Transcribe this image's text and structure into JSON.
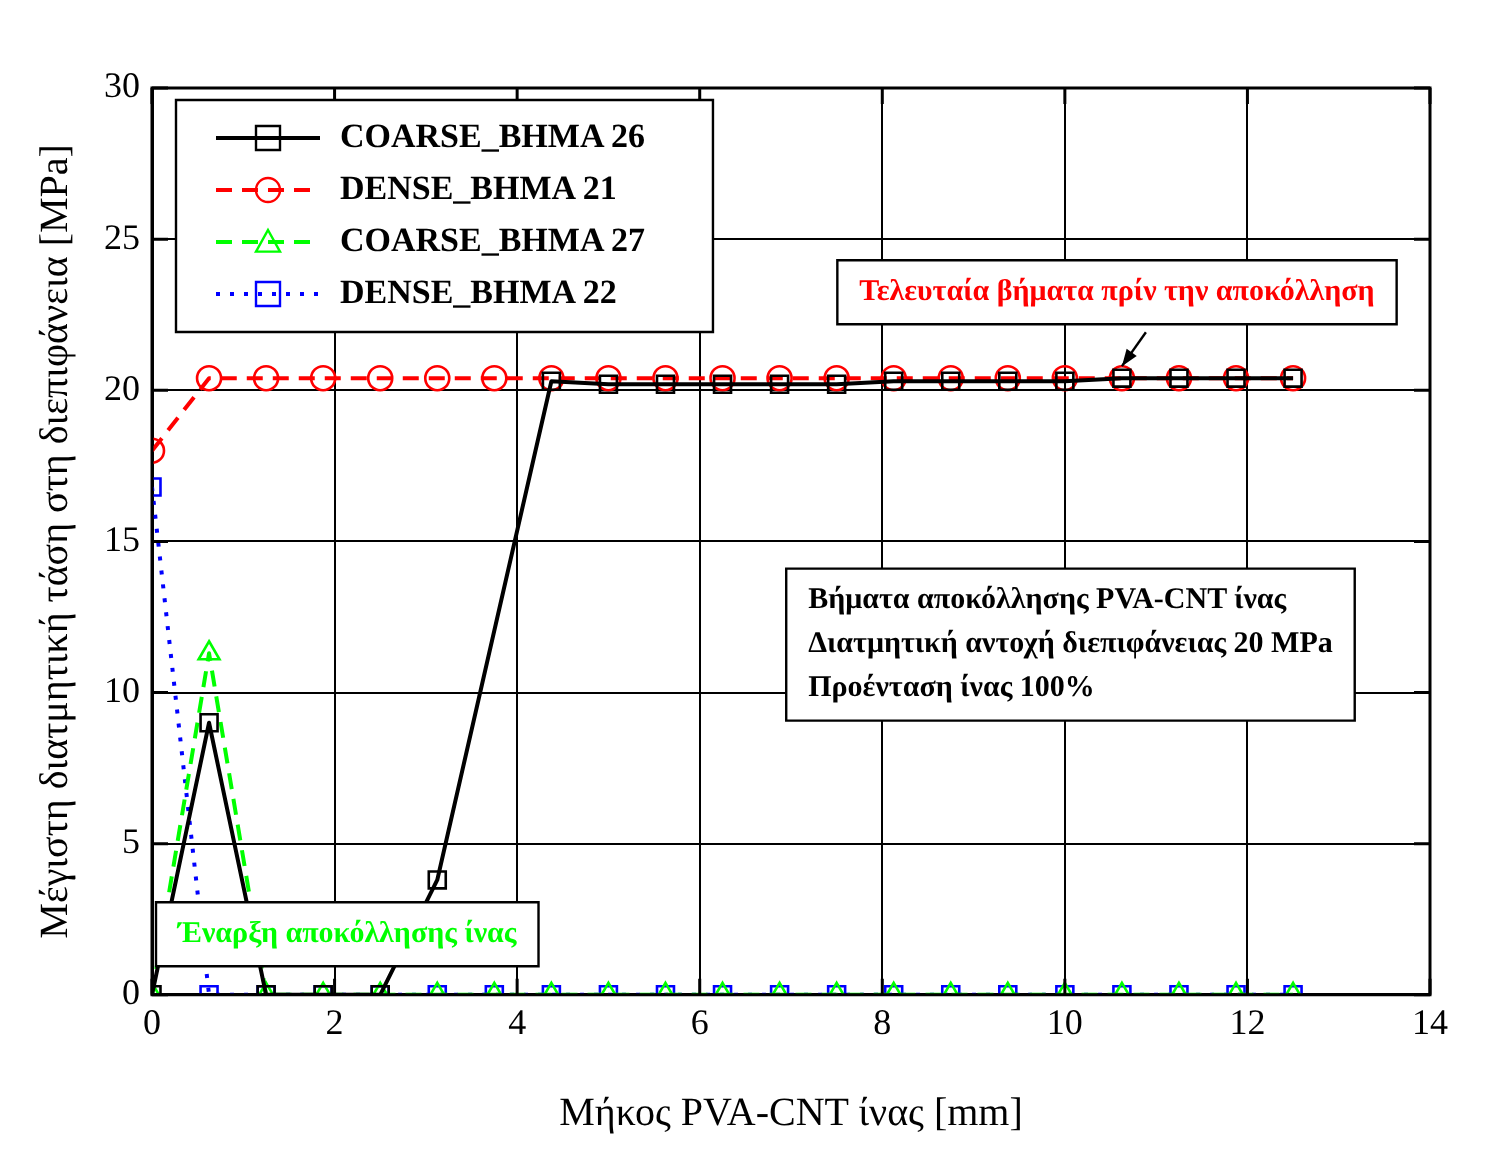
{
  "chart_data": {
    "type": "line",
    "xlabel": "Μήκος PVA-CNT ίνας [mm]",
    "ylabel": "Μέγιστη διατμητική τάση στη διεπιφάνεια [MPa]",
    "x": [
      0,
      0.625,
      1.25,
      1.875,
      2.5,
      3.125,
      3.75,
      4.375,
      5,
      5.625,
      6.25,
      6.875,
      7.5,
      8.125,
      8.75,
      9.375,
      10,
      10.625,
      11.25,
      11.875,
      12.5
    ],
    "series": [
      {
        "name": "COARSE_BHMA 26",
        "color": "#000000",
        "marker": "square",
        "line_style": "solid",
        "x": [
          0,
          0.625,
          1.25,
          1.875,
          2.5,
          3.125,
          4.375,
          5,
          5.625,
          6.25,
          6.875,
          7.5,
          8.125,
          8.75,
          9.375,
          10,
          10.625,
          11.25,
          11.875,
          12.5
        ],
        "values": [
          0,
          9,
          0,
          0,
          0,
          3.8,
          20.3,
          20.2,
          20.2,
          20.2,
          20.2,
          20.2,
          20.3,
          20.3,
          20.3,
          20.3,
          20.4,
          20.4,
          20.4,
          20.4
        ]
      },
      {
        "name": "DENSE_BHMA 21",
        "color": "#ff0000",
        "marker": "circle",
        "line_style": "dashed",
        "values": [
          18,
          20.4,
          20.4,
          20.4,
          20.4,
          20.4,
          20.4,
          20.4,
          20.4,
          20.4,
          20.4,
          20.4,
          20.4,
          20.4,
          20.4,
          20.4,
          20.4,
          20.4,
          20.4,
          20.4,
          20.4
        ]
      },
      {
        "name": "COARSE_BHMA 27",
        "color": "#00ff00",
        "marker": "triangle",
        "line_style": "dashed",
        "values": [
          0,
          11.3,
          0,
          0,
          0,
          0,
          0,
          0,
          0,
          0,
          0,
          0,
          0,
          0,
          0,
          0,
          0,
          0,
          0,
          0,
          0
        ]
      },
      {
        "name": "DENSE_BHMA 22",
        "color": "#0000ff",
        "marker": "square",
        "line_style": "dotted",
        "values": [
          16.8,
          0,
          0,
          0,
          0,
          0,
          0,
          0,
          0,
          0,
          0,
          0,
          0,
          0,
          0,
          0,
          0,
          0,
          0,
          0,
          0
        ]
      }
    ],
    "xlim": [
      0,
      14
    ],
    "xticks": [
      0,
      2,
      4,
      6,
      8,
      10,
      12,
      14
    ],
    "ylim": [
      0,
      30
    ],
    "yticks": [
      0,
      5,
      10,
      15,
      20,
      25,
      30
    ],
    "grid": true,
    "legend": "top left",
    "annotations": [
      {
        "text": "Τελευταία βήματα πρίν την αποκόλληση",
        "x": 10.625,
        "y": 20.4
      },
      "Βήματα αποκόλλησης PVA-CNT ίνας\nΔιατμητική αντοχή διεπιφάνειας 20 MPa\nΠροένταση ίνας 100%",
      "Έναρξη αποκόλλησης ίνας"
    ]
  }
}
